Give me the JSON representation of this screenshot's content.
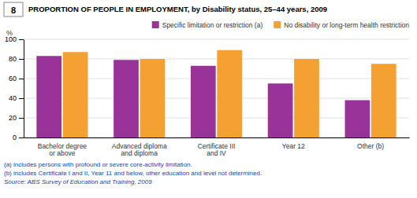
{
  "chart_data": {
    "type": "bar",
    "title": "PROPORTION OF PEOPLE IN EMPLOYMENT, by Disability status, 25–44 years, 2009",
    "ylabel": "%",
    "categories": [
      "Bachelor degree\nor above",
      "Advanced diploma\nand diploma",
      "Certificate III\nand IV",
      "Year 12",
      "Other (b)"
    ],
    "series": [
      {
        "name": "Specific limitation or restriction (a)",
        "color": "#993399",
        "values": [
          83,
          79,
          73,
          55,
          38
        ]
      },
      {
        "name": "No disability or long-term health restriction",
        "color": "#F5A032",
        "values": [
          87,
          80,
          89,
          80,
          75
        ]
      }
    ],
    "ylim": [
      0,
      100
    ],
    "yticks": [
      0,
      20,
      40,
      60,
      80,
      100
    ],
    "grid": true,
    "legend": "upper right",
    "annotations": [
      "8",
      "(a) includes persons with profound or severe core-activity limitation.",
      "(b) includes Certificate I and II, Year 11 and below, other education and level not determined.",
      "Source: ABS Survey of Education and Training, 2009"
    ]
  }
}
